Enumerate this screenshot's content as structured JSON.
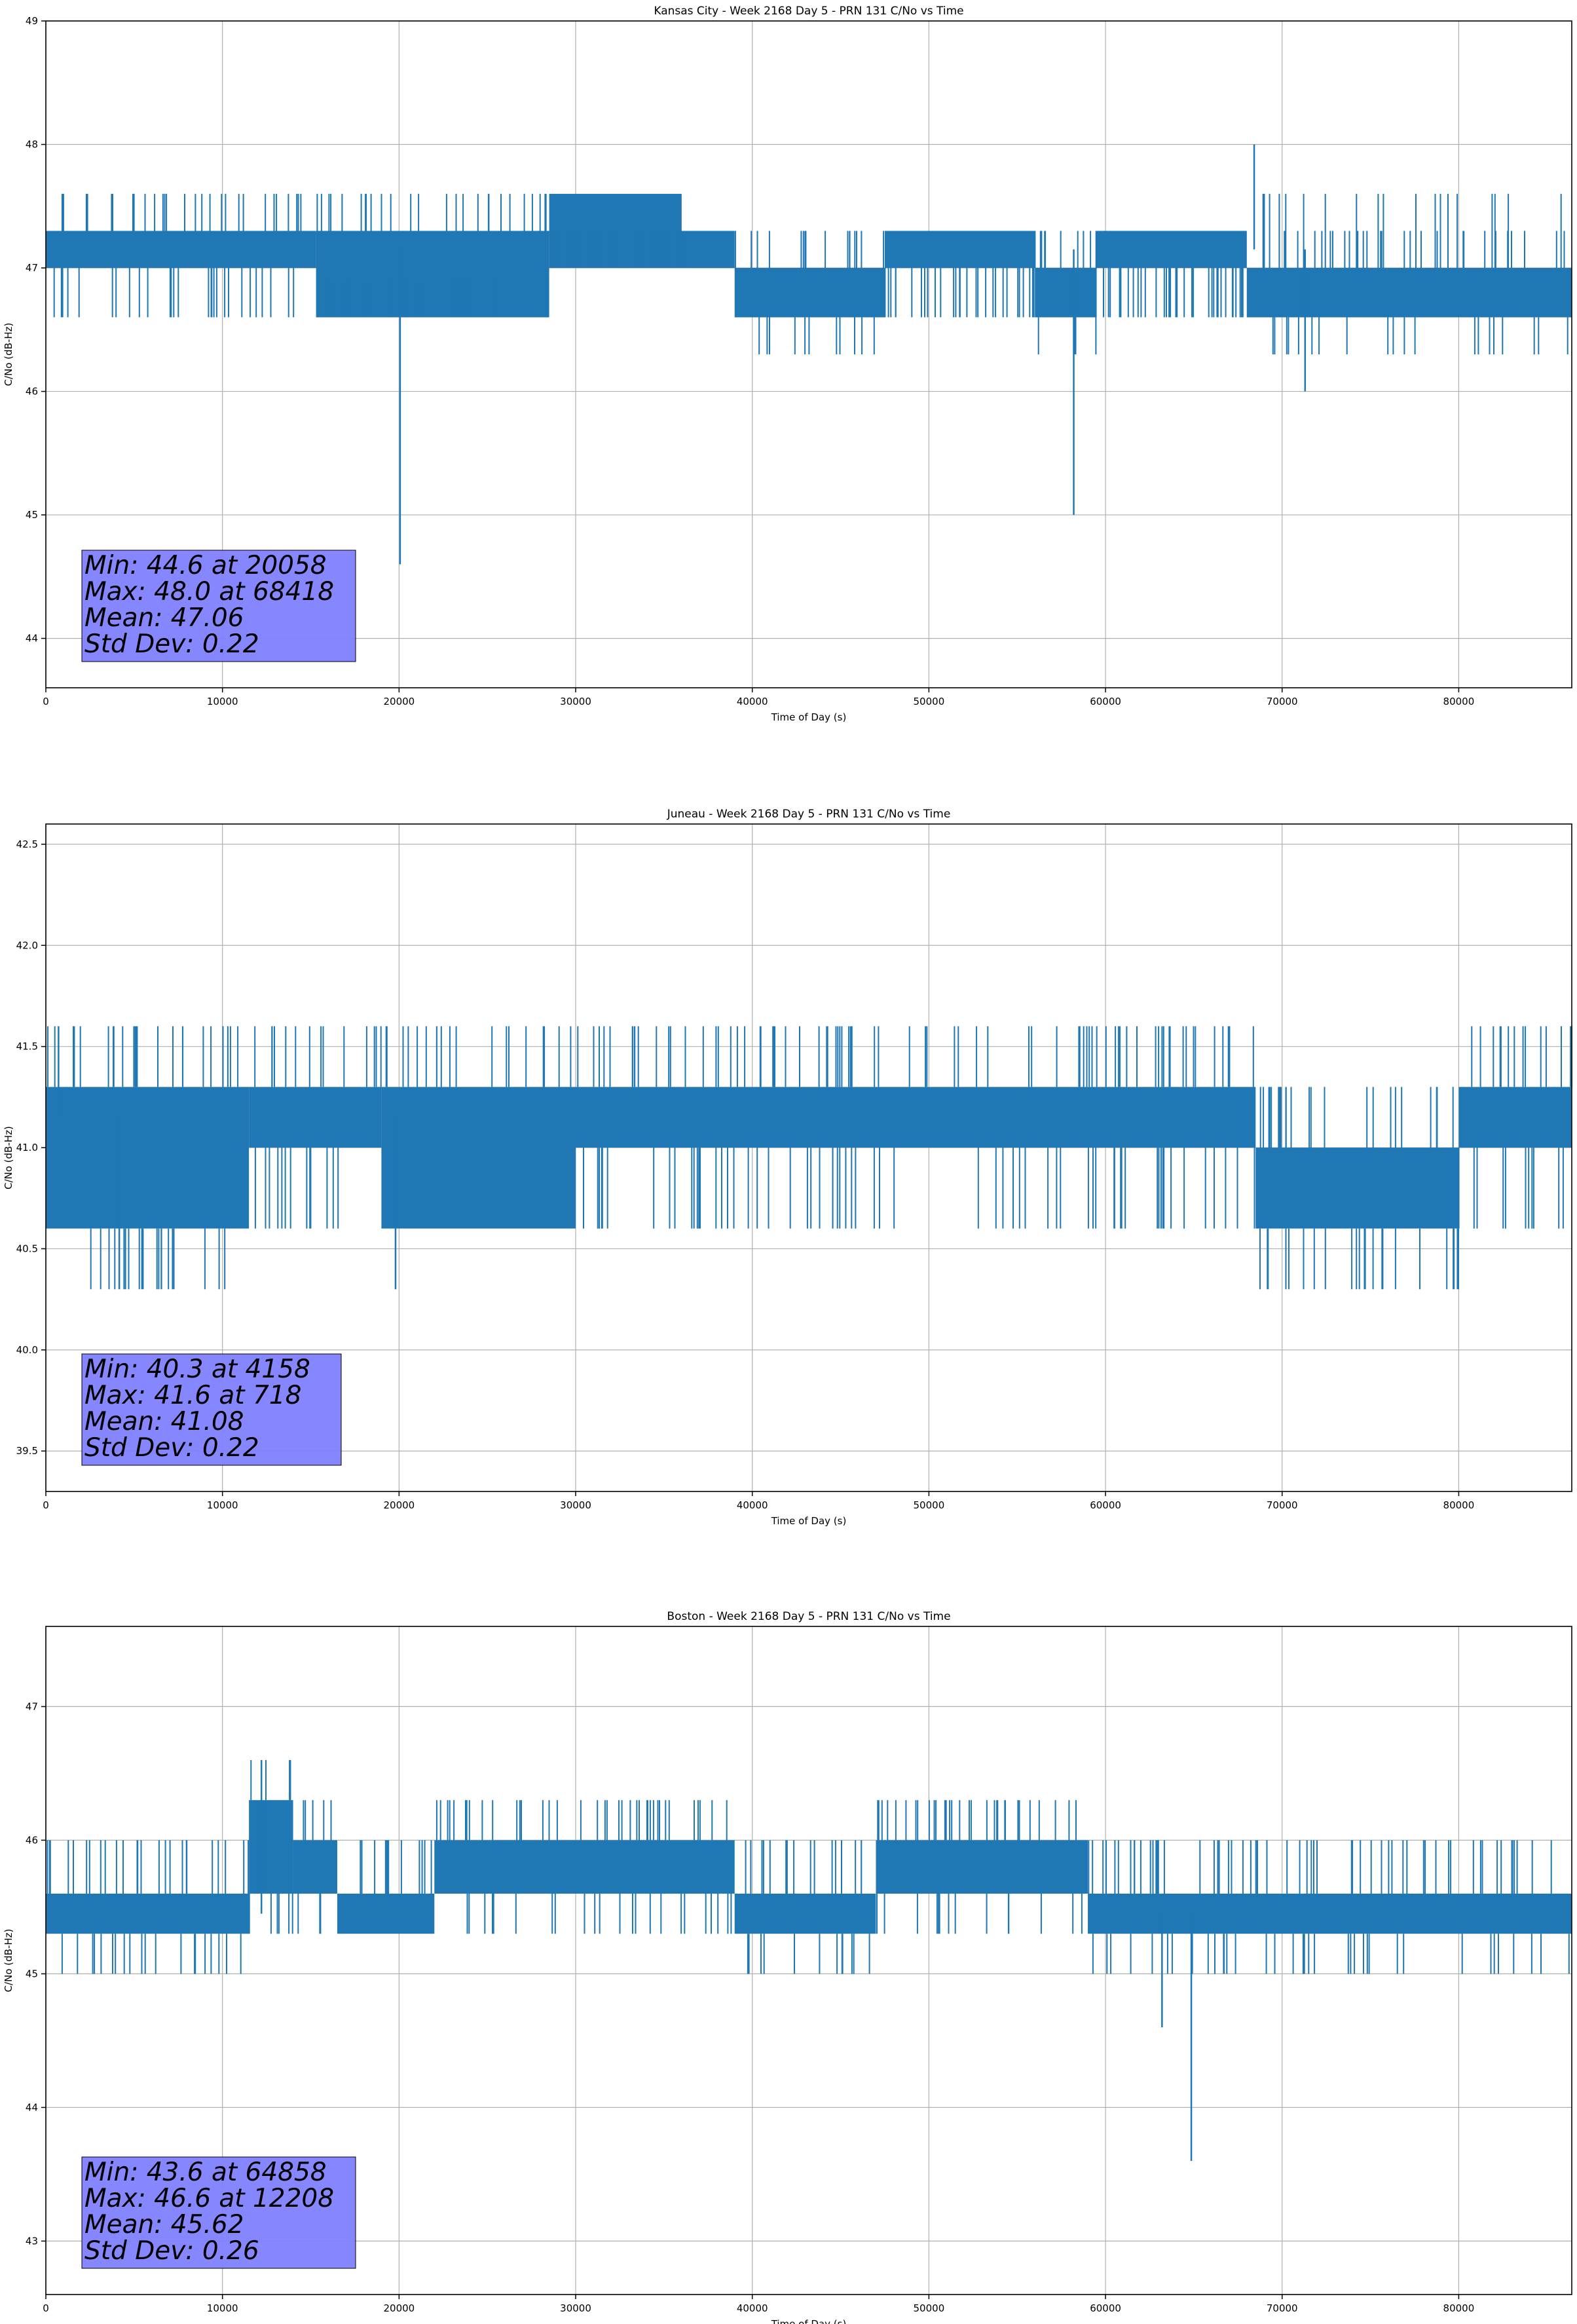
{
  "chart_data": [
    {
      "type": "line",
      "title": "Kansas City - Week 2168 Day 5 - PRN 131 C/No vs Time",
      "xlabel": "Time of Day (s)",
      "ylabel": "C/No (dB-Hz)",
      "xlim": [
        0,
        86400
      ],
      "ylim": [
        43.6,
        49.0
      ],
      "xticks": [
        0,
        10000,
        20000,
        30000,
        40000,
        50000,
        60000,
        70000,
        80000
      ],
      "yticks": [
        44,
        45,
        46,
        47,
        48,
        49
      ],
      "ytick_labels": [
        "44",
        "45",
        "46",
        "47",
        "48",
        "49"
      ],
      "grid": true,
      "series_color": "#1f77b4",
      "base_levels": [
        47.0,
        47.3
      ],
      "quantum": 0.3,
      "segments": [
        {
          "x0": 0,
          "x1": 15300,
          "low": 47.0,
          "high": 47.3,
          "flick_low": [
            46.6
          ],
          "flick_high": [
            47.6
          ]
        },
        {
          "x0": 15300,
          "x1": 28500,
          "low": 46.6,
          "high": 47.3,
          "flick_low": [
            46.9
          ],
          "flick_high": [
            47.6
          ]
        },
        {
          "x0": 28500,
          "x1": 36000,
          "low": 47.0,
          "high": 47.6,
          "flick_low": [
            47.3
          ],
          "flick_high": []
        },
        {
          "x0": 36000,
          "x1": 39000,
          "low": 47.0,
          "high": 47.3,
          "flick_low": [],
          "flick_high": []
        },
        {
          "x0": 39000,
          "x1": 47500,
          "low": 46.6,
          "high": 47.0,
          "flick_low": [
            46.3
          ],
          "flick_high": [
            47.3
          ]
        },
        {
          "x0": 47500,
          "x1": 56000,
          "low": 47.0,
          "high": 47.3,
          "flick_low": [
            46.6
          ],
          "flick_high": []
        },
        {
          "x0": 56000,
          "x1": 59500,
          "low": 46.6,
          "high": 47.0,
          "flick_low": [
            46.3
          ],
          "flick_high": [
            47.3
          ]
        },
        {
          "x0": 59500,
          "x1": 68000,
          "low": 47.0,
          "high": 47.3,
          "flick_low": [
            46.6
          ],
          "flick_high": []
        },
        {
          "x0": 68000,
          "x1": 86400,
          "low": 46.6,
          "high": 47.0,
          "flick_low": [
            46.3
          ],
          "flick_high": [
            47.3,
            47.6
          ]
        }
      ],
      "extremes": [
        {
          "x": 20058,
          "y": 44.6
        },
        {
          "x": 58200,
          "y": 45.0
        },
        {
          "x": 71300,
          "y": 46.0
        },
        {
          "x": 68418,
          "y": 48.0
        }
      ],
      "stats": {
        "min": "Min: 44.6 at 20058",
        "max": "Max: 48.0 at 68418",
        "mean": "Mean: 47.06",
        "std": "Std Dev: 0.22"
      }
    },
    {
      "type": "line",
      "title": "Juneau - Week 2168 Day 5 - PRN 131 C/No vs Time",
      "xlabel": "Time of Day (s)",
      "ylabel": "C/No (dB-Hz)",
      "xlim": [
        0,
        86400
      ],
      "ylim": [
        39.3,
        42.6
      ],
      "xticks": [
        0,
        10000,
        20000,
        30000,
        40000,
        50000,
        60000,
        70000,
        80000
      ],
      "yticks": [
        39.5,
        40.0,
        40.5,
        41.0,
        41.5,
        42.0,
        42.5
      ],
      "ytick_labels": [
        "39.5",
        "40.0",
        "40.5",
        "41.0",
        "41.5",
        "42.0",
        "42.5"
      ],
      "grid": true,
      "series_color": "#1f77b4",
      "base_levels": [
        41.0,
        41.3
      ],
      "quantum": 0.3,
      "segments": [
        {
          "x0": 0,
          "x1": 11500,
          "low": 40.6,
          "high": 41.3,
          "flick_low": [
            40.3
          ],
          "flick_high": [
            41.6
          ]
        },
        {
          "x0": 11500,
          "x1": 19000,
          "low": 41.0,
          "high": 41.3,
          "flick_low": [
            40.6
          ],
          "flick_high": [
            41.6
          ]
        },
        {
          "x0": 19000,
          "x1": 30000,
          "low": 40.6,
          "high": 41.3,
          "flick_low": [],
          "flick_high": [
            41.6
          ]
        },
        {
          "x0": 30000,
          "x1": 61500,
          "low": 41.0,
          "high": 41.3,
          "flick_low": [
            40.6
          ],
          "flick_high": [
            41.6
          ]
        },
        {
          "x0": 61500,
          "x1": 68500,
          "low": 41.0,
          "high": 41.3,
          "flick_low": [
            40.6
          ],
          "flick_high": [
            41.6
          ]
        },
        {
          "x0": 68500,
          "x1": 80000,
          "low": 40.6,
          "high": 41.0,
          "flick_low": [
            40.3
          ],
          "flick_high": [
            41.3
          ]
        },
        {
          "x0": 80000,
          "x1": 86400,
          "low": 41.0,
          "high": 41.3,
          "flick_low": [
            40.6
          ],
          "flick_high": [
            41.6
          ]
        }
      ],
      "extremes": [
        {
          "x": 4158,
          "y": 40.3
        },
        {
          "x": 19800,
          "y": 40.3
        },
        {
          "x": 718,
          "y": 41.6
        }
      ],
      "stats": {
        "min": "Min: 40.3 at 4158",
        "max": "Max: 41.6 at 718",
        "mean": "Mean: 41.08",
        "std": "Std Dev: 0.22"
      }
    },
    {
      "type": "line",
      "title": "Boston - Week 2168 Day 5 - PRN 131 C/No vs Time",
      "xlabel": "Time of Day (s)",
      "ylabel": "C/No (dB-Hz)",
      "xlim": [
        0,
        86400
      ],
      "ylim": [
        42.6,
        47.6
      ],
      "xticks": [
        0,
        10000,
        20000,
        30000,
        40000,
        50000,
        60000,
        70000,
        80000
      ],
      "yticks": [
        43,
        44,
        45,
        46,
        47
      ],
      "ytick_labels": [
        "43",
        "44",
        "45",
        "46",
        "47"
      ],
      "grid": true,
      "series_color": "#1f77b4",
      "base_levels": [
        45.3,
        45.6
      ],
      "quantum": 0.3,
      "segments": [
        {
          "x0": 0,
          "x1": 11500,
          "low": 45.3,
          "high": 45.6,
          "flick_low": [
            45.0
          ],
          "flick_high": [
            46.0
          ]
        },
        {
          "x0": 11500,
          "x1": 14000,
          "low": 45.6,
          "high": 46.3,
          "flick_low": [
            45.3
          ],
          "flick_high": [
            46.6
          ]
        },
        {
          "x0": 14000,
          "x1": 16500,
          "low": 45.6,
          "high": 46.0,
          "flick_low": [
            45.3
          ],
          "flick_high": [
            46.3
          ]
        },
        {
          "x0": 16500,
          "x1": 22000,
          "low": 45.3,
          "high": 45.6,
          "flick_low": [],
          "flick_high": [
            46.0
          ]
        },
        {
          "x0": 22000,
          "x1": 39000,
          "low": 45.6,
          "high": 46.0,
          "flick_low": [
            45.3
          ],
          "flick_high": [
            46.3
          ]
        },
        {
          "x0": 39000,
          "x1": 47000,
          "low": 45.3,
          "high": 45.6,
          "flick_low": [
            45.0
          ],
          "flick_high": [
            46.0
          ]
        },
        {
          "x0": 47000,
          "x1": 59000,
          "low": 45.6,
          "high": 46.0,
          "flick_low": [
            45.3
          ],
          "flick_high": [
            46.3
          ]
        },
        {
          "x0": 59000,
          "x1": 86400,
          "low": 45.3,
          "high": 45.6,
          "flick_low": [
            45.0
          ],
          "flick_high": [
            46.0
          ]
        }
      ],
      "extremes": [
        {
          "x": 64858,
          "y": 43.6
        },
        {
          "x": 63200,
          "y": 44.6
        },
        {
          "x": 12208,
          "y": 46.6
        }
      ],
      "stats": {
        "min": "Min: 43.6 at 64858",
        "max": "Max: 46.6 at 12208",
        "mean": "Mean: 45.62",
        "std": "Std Dev: 0.26"
      }
    }
  ]
}
